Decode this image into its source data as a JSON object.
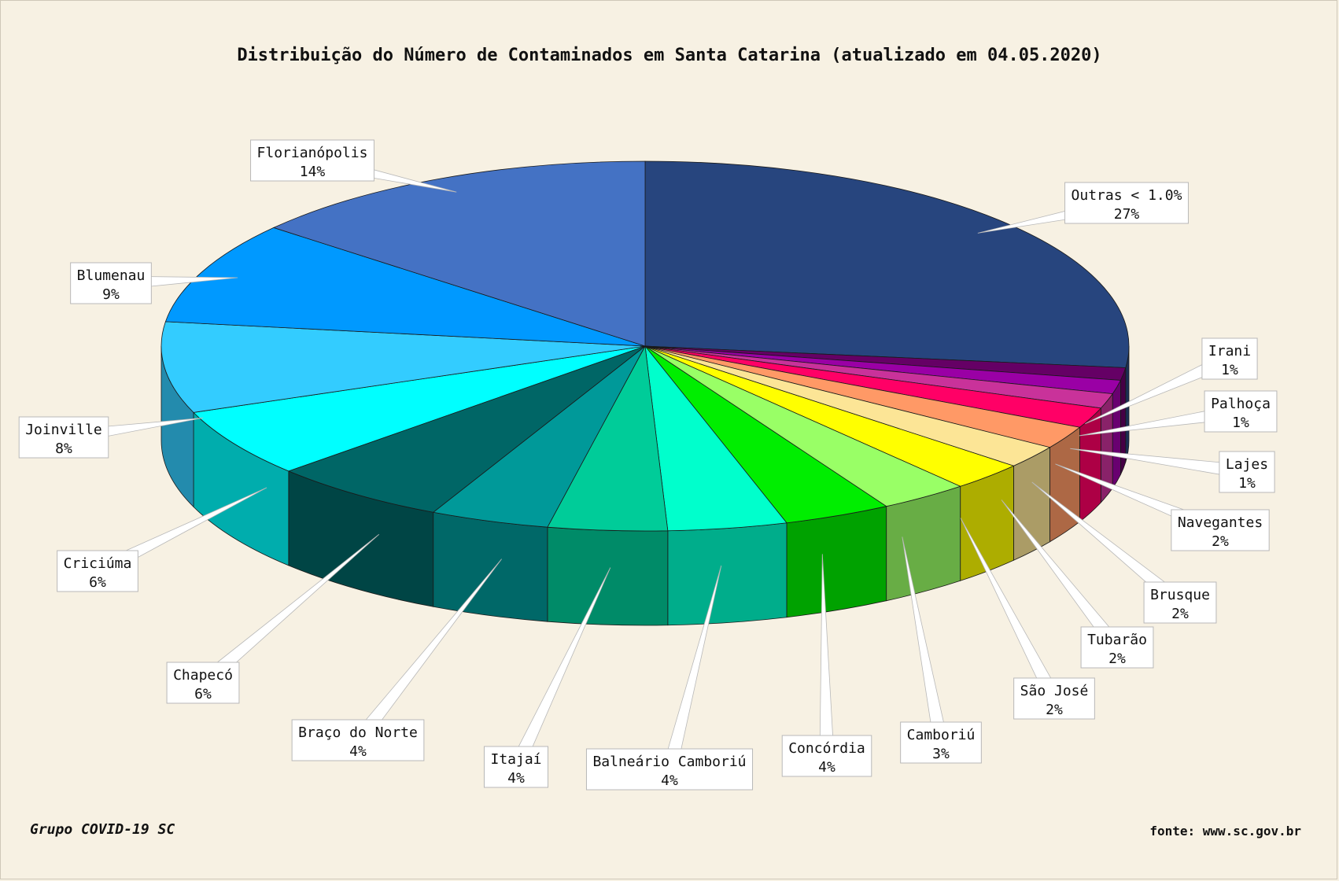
{
  "header": {
    "title": "Distribuição do Número de Contaminados em Santa Catarina (atualizado em 04.05.2020)"
  },
  "footer": {
    "credit": "Grupo COVID-19 SC",
    "source": "fonte: www.sc.gov.br"
  },
  "chart_data": {
    "type": "pie",
    "style": "3d-exploded-none",
    "slices": [
      {
        "label": "Outras < 1.0%",
        "pct_label": "27%",
        "value": 27.0,
        "color": "#27457e"
      },
      {
        "label": "Irani",
        "pct_label": "1%",
        "value": 1.1,
        "color": "#650065"
      },
      {
        "label": "Palhoça",
        "pct_label": "1%",
        "value": 1.2,
        "color": "#9a00a5"
      },
      {
        "label": "Lajes",
        "pct_label": "1%",
        "value": 1.3,
        "color": "#c9329a"
      },
      {
        "label": "Navegantes",
        "pct_label": "2%",
        "value": 1.8,
        "color": "#ff0066"
      },
      {
        "label": "Brusque",
        "pct_label": "2%",
        "value": 2.0,
        "color": "#ff9966"
      },
      {
        "label": "Tubarão",
        "pct_label": "2%",
        "value": 2.0,
        "color": "#fce596"
      },
      {
        "label": "São José",
        "pct_label": "2%",
        "value": 2.5,
        "color": "#ffff00"
      },
      {
        "label": "Camboriú",
        "pct_label": "3%",
        "value": 3.0,
        "color": "#99ff66"
      },
      {
        "label": "Concórdia",
        "pct_label": "4%",
        "value": 3.6,
        "color": "#00ee00"
      },
      {
        "label": "Balneário Camboriú",
        "pct_label": "4%",
        "value": 4.0,
        "color": "#00ffcc"
      },
      {
        "label": "Itajaí",
        "pct_label": "4%",
        "value": 4.0,
        "color": "#00cc99"
      },
      {
        "label": "Braço do Norte",
        "pct_label": "4%",
        "value": 4.0,
        "color": "#009999"
      },
      {
        "label": "Chapecó",
        "pct_label": "6%",
        "value": 6.0,
        "color": "#006666"
      },
      {
        "label": "Criciúma",
        "pct_label": "6%",
        "value": 6.0,
        "color": "#00ffff"
      },
      {
        "label": "Joinville",
        "pct_label": "8%",
        "value": 8.0,
        "color": "#33ccff"
      },
      {
        "label": "Blumenau",
        "pct_label": "9%",
        "value": 9.0,
        "color": "#0099ff"
      },
      {
        "label": "Florianópolis",
        "pct_label": "14%",
        "value": 14.0,
        "color": "#4472c4"
      }
    ]
  }
}
